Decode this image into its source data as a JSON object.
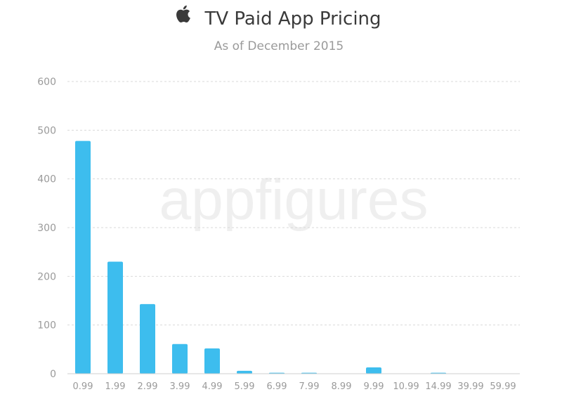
{
  "chart_data": {
    "type": "bar",
    "title": "TV Paid App Pricing",
    "subtitle": "As of December 2015",
    "watermark": "appfigures",
    "categories": [
      "0.99",
      "1.99",
      "2.99",
      "3.99",
      "4.99",
      "5.99",
      "6.99",
      "7.99",
      "8.99",
      "9.99",
      "10.99",
      "14.99",
      "39.99",
      "59.99"
    ],
    "values": [
      478,
      230,
      143,
      61,
      52,
      6,
      2,
      2,
      0,
      13,
      0,
      2,
      0,
      0
    ],
    "yticks": [
      "0",
      "100",
      "200",
      "300",
      "400",
      "500",
      "600"
    ],
    "ylim": [
      0,
      600
    ],
    "grid": true,
    "colors": {
      "bar": "#3dbdee",
      "title": "#3a3a3a",
      "subtitle": "#9a9a9a",
      "tick": "#9a9a9a",
      "grid": "#d9d9d9",
      "watermark": "#efefef"
    },
    "icons": {
      "brand": "apple-logo-icon"
    }
  }
}
